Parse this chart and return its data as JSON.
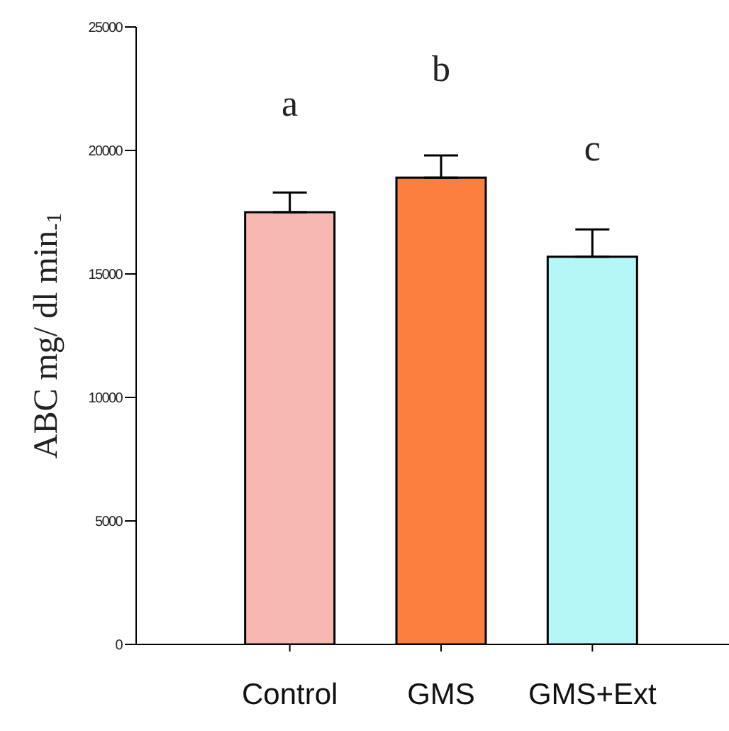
{
  "chart_data": {
    "type": "bar",
    "ylabel": "ABC mg/ dl min$_{-1}$",
    "categories": [
      "Control",
      "GMS",
      "GMS+Ext"
    ],
    "values": [
      17500,
      18900,
      15700
    ],
    "colors": [
      "#f7b8b2",
      "#fb7f3e",
      "#b5f7f7"
    ],
    "errors": [
      [
        17500,
        18300
      ],
      [
        18900,
        19800
      ],
      [
        15700,
        16800
      ]
    ],
    "ylim": [
      0,
      25000
    ],
    "yticks": [
      0,
      5000,
      10000,
      15000,
      20000,
      25000
    ],
    "grid": false,
    "legend": false,
    "annotations": [
      "a",
      "b",
      "c"
    ]
  }
}
